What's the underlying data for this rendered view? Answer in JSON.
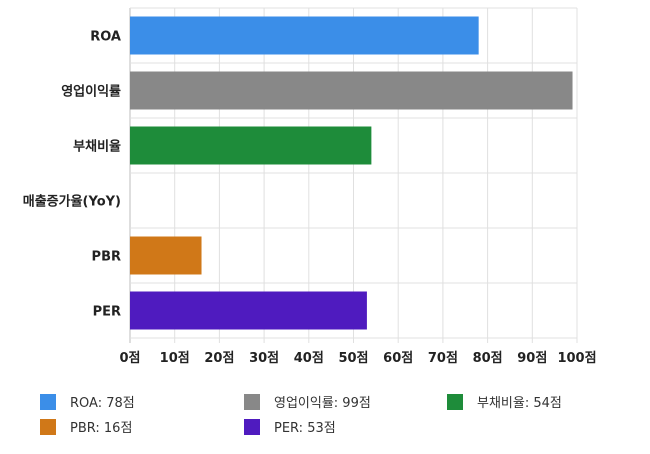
{
  "chart_data": {
    "type": "bar",
    "orientation": "horizontal",
    "categories": [
      "ROA",
      "영업이익률",
      "부채비율",
      "매출증가율(YoY)",
      "PBR",
      "PER"
    ],
    "values": [
      78,
      99,
      54,
      null,
      16,
      53
    ],
    "colors": [
      "#3b8ee8",
      "#888888",
      "#1e8c3a",
      "#1e8c3a",
      "#d07818",
      "#4f1bbf"
    ],
    "xlim": [
      0,
      100
    ],
    "xticks": [
      "0점",
      "10점",
      "20점",
      "30점",
      "40점",
      "50점",
      "60점",
      "70점",
      "80점",
      "90점",
      "100점"
    ],
    "grid": true,
    "legend": [
      {
        "label": "ROA: 78점",
        "color": "#3b8ee8"
      },
      {
        "label": "영업이익률: 99점",
        "color": "#888888"
      },
      {
        "label": "부채비율: 54점",
        "color": "#1e8c3a"
      },
      {
        "label": "PBR: 16점",
        "color": "#d07818"
      },
      {
        "label": "PER: 53점",
        "color": "#4f1bbf"
      }
    ],
    "legend_position": "bottom"
  }
}
